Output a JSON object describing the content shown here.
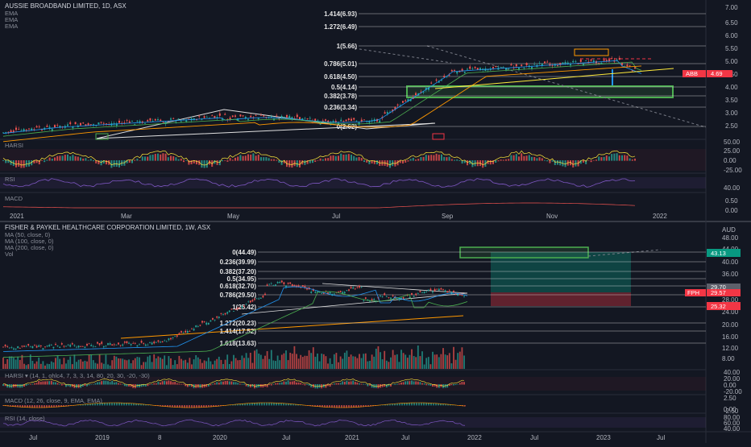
{
  "chart_data": [
    {
      "type": "line",
      "title": "AUSSIE BROADBAND LIMITED, 1D, ASX",
      "indicator_labels": [
        "EMA",
        "EMA",
        "EMA"
      ],
      "symbol_tag": "ABB",
      "last_price": "4.69",
      "y_ticks": [
        "7.00",
        "6.50",
        "6.00",
        "5.50",
        "5.00",
        "4.50",
        "4.00",
        "3.50",
        "3.00",
        "2.50"
      ],
      "fib_levels": [
        {
          "label": "1.414(6.93)",
          "value": 6.93
        },
        {
          "label": "1.272(6.49)",
          "value": 6.49
        },
        {
          "label": "1(5.66)",
          "value": 5.66
        },
        {
          "label": "0.786(5.01)",
          "value": 5.01
        },
        {
          "label": "0.618(4.50)",
          "value": 4.5
        },
        {
          "label": "0.5(4.14)",
          "value": 4.14
        },
        {
          "label": "0.382(3.78)",
          "value": 3.78
        },
        {
          "label": "0.236(3.34)",
          "value": 3.34
        },
        {
          "label": "0(2.62)",
          "value": 2.62
        }
      ],
      "x_ticks": [
        "2021",
        "Mar",
        "May",
        "Jul",
        "Sep",
        "Nov",
        "2022"
      ],
      "harsi": {
        "label": "HARSI",
        "ticks": [
          "50.00",
          "25.00",
          "0.00",
          "-25.00"
        ]
      },
      "rsi": {
        "label": "RSI",
        "ticks": [
          "40.00"
        ]
      },
      "macd": {
        "label": "MACD",
        "ticks": [
          "0.50",
          "0.00"
        ]
      }
    },
    {
      "type": "line",
      "title": "FISHER & PAYKEL HEALTHCARE CORPORATION LIMITED, 1W, ASX",
      "indicator_labels": [
        "MA (50, close, 0)",
        "MA (100, close, 0)",
        "MA (200, close, 0)",
        "Vol"
      ],
      "symbol_tag": "FPH",
      "last_price": "29.57",
      "currency": "AUD",
      "target_price": "43.13",
      "stop_price": "25.32",
      "entry_price": "29.70",
      "y_ticks": [
        "48.00",
        "44.00",
        "40.00",
        "36.00",
        "32.00",
        "28.00",
        "24.00",
        "20.00",
        "16.00",
        "12.00",
        "8.00"
      ],
      "fib_levels": [
        {
          "label": "0(44.49)",
          "value": 44.49
        },
        {
          "label": "0.236(39.99)",
          "value": 39.99
        },
        {
          "label": "0.382(37.20)",
          "value": 37.2
        },
        {
          "label": "0.5(34.95)",
          "value": 34.95
        },
        {
          "label": "0.618(32.70)",
          "value": 32.7
        },
        {
          "label": "0.786(29.50)",
          "value": 29.5
        },
        {
          "label": "1(25.42)",
          "value": 25.42
        },
        {
          "label": "1.272(20.23)",
          "value": 20.23
        },
        {
          "label": "1.414(17.52)",
          "value": 17.52
        },
        {
          "label": "1.618(13.63)",
          "value": 13.63
        }
      ],
      "x_ticks": [
        "Jul",
        "2019",
        "8",
        "2020",
        "Jul",
        "2021",
        "Jul",
        "2022",
        "Jul",
        "2023",
        "Jul"
      ],
      "harsi": {
        "label": "HARSI ▾ (14, 1, ohlc4, 7, 3, 3, 14, 80, 20, 30, -20, -30)",
        "ticks": [
          "40.00",
          "20.00",
          "0.00",
          "-20.00"
        ]
      },
      "macd": {
        "label": "MACD (12, 26, close, 9, EMA, EMA)",
        "ticks": [
          "2.50",
          "0.00",
          "-2.50"
        ]
      },
      "rsi": {
        "label": "RSI (14, close)",
        "ticks": [
          "80.00",
          "60.00",
          "40.00"
        ]
      }
    }
  ]
}
